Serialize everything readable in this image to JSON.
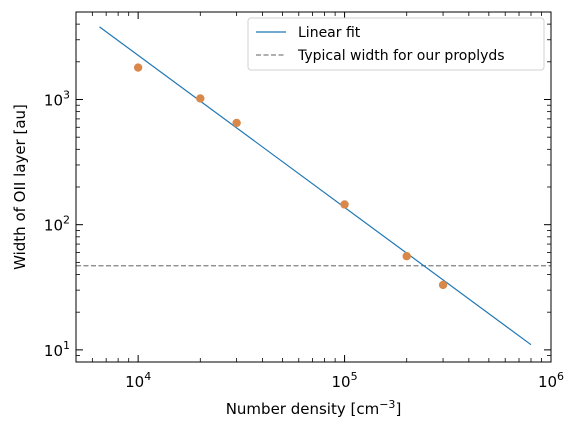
{
  "chart_data": {
    "type": "scatter",
    "xlabel": "Number density [cm",
    "xlabel_sup": "−3",
    "xlabel_suffix": "]",
    "ylabel": "Width of OII layer [au]",
    "xscale": "log",
    "yscale": "log",
    "xlim": [
      5000,
      1000000
    ],
    "ylim": [
      8,
      5000
    ],
    "grid": false,
    "legend_placement": "top-right",
    "x_ticks": [
      {
        "value": 10000,
        "base": "10",
        "exp": "4"
      },
      {
        "value": 100000,
        "base": "10",
        "exp": "5"
      },
      {
        "value": 1000000,
        "base": "10",
        "exp": "6"
      }
    ],
    "y_ticks": [
      {
        "value": 10,
        "base": "10",
        "exp": "1"
      },
      {
        "value": 100,
        "base": "10",
        "exp": "2"
      },
      {
        "value": 1000,
        "base": "10",
        "exp": "3"
      }
    ],
    "points": {
      "color": "#d9884a",
      "x": [
        10000,
        20000,
        30000,
        100000,
        200000,
        300000
      ],
      "y": [
        1800,
        1020,
        650,
        145,
        56,
        33
      ]
    },
    "series": [
      {
        "name": "Linear fit",
        "style": "solid",
        "color": "#1f77b4",
        "x": [
          6500,
          800000
        ],
        "y": [
          3800,
          11
        ]
      },
      {
        "name": "Typical width for our proplyds",
        "style": "dashed",
        "color": "#808080",
        "y_const": 47
      }
    ]
  }
}
